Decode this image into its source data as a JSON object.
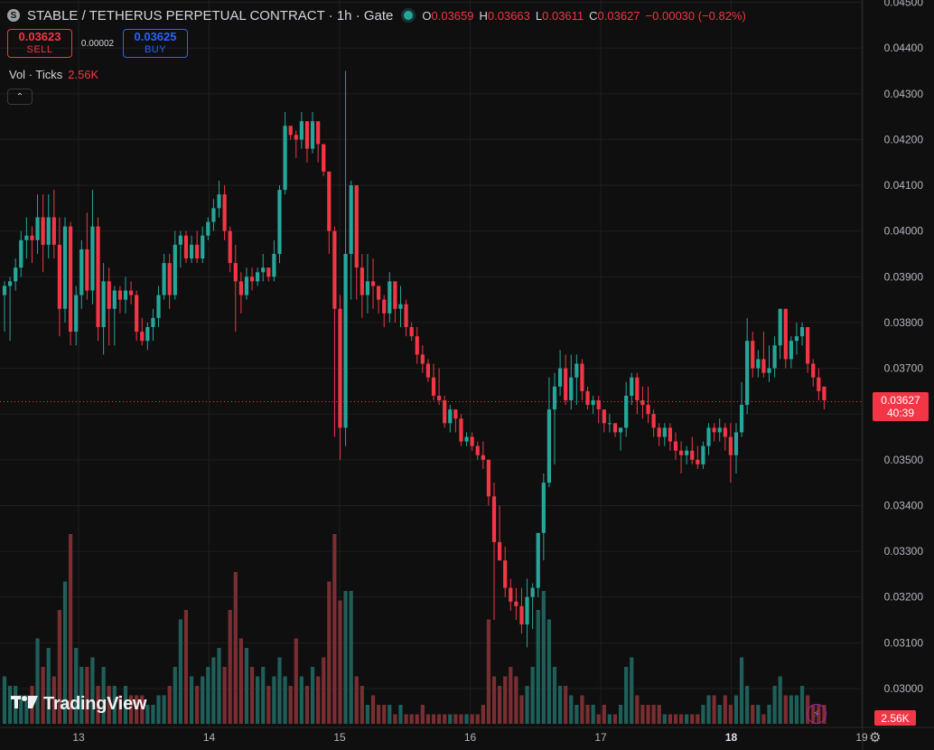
{
  "header": {
    "symbol_icon": "stable-coin-icon",
    "title": "STABLE / TETHERUS PERPETUAL CONTRACT · 1h · Gate",
    "live_dot": "market-open-icon",
    "ohlc": {
      "o_label": "O",
      "o": "0.03659",
      "h_label": "H",
      "h": "0.03663",
      "l_label": "L",
      "l": "0.03611",
      "c_label": "C",
      "c": "0.03627",
      "change": "−0.00030 (−0.82%)"
    }
  },
  "trade": {
    "sell_price": "0.03623",
    "sell_label": "SELL",
    "spread": "0.00002",
    "buy_price": "0.03625",
    "buy_label": "BUY"
  },
  "volume_legend": {
    "label": "Vol · Ticks",
    "value": "2.56K"
  },
  "collapse_icon": "chevron-up-icon",
  "logo": {
    "text": "TradingView",
    "icon": "tradingview-logo-icon"
  },
  "flash_icon": "lightning-icon",
  "settings_icon": "gear-icon",
  "colors": {
    "up": "#26a69a",
    "down": "#f23645",
    "volume_up": "#1f5f5a",
    "volume_down": "#7a2e32",
    "background": "#0f0f0f"
  },
  "chart_data": {
    "type": "candlestick",
    "price_axis_ticks": [
      "0.04500",
      "0.04400",
      "0.04300",
      "0.04200",
      "0.04100",
      "0.04000",
      "0.03900",
      "0.03800",
      "0.03700",
      "0.03600",
      "0.03500",
      "0.03400",
      "0.03300",
      "0.03200",
      "0.03100",
      "0.03000"
    ],
    "ylim": [
      0.02915,
      0.04505
    ],
    "time_axis_ticks": [
      {
        "label": "13",
        "day": 13
      },
      {
        "label": "14",
        "day": 14
      },
      {
        "label": "15",
        "day": 15
      },
      {
        "label": "16",
        "day": 16
      },
      {
        "label": "17",
        "day": 17
      },
      {
        "label": "18",
        "day": 18,
        "bold": true
      },
      {
        "label": "19",
        "day": 19
      }
    ],
    "last_price": {
      "value": "0.03627",
      "countdown": "40:39",
      "price": 0.03627
    },
    "volume_badge": "2.56K",
    "volume_max": 2.0,
    "candles": [
      [
        0.0386,
        0.0389,
        0.0378,
        0.0388,
        0.5
      ],
      [
        0.0388,
        0.039,
        0.0376,
        0.0389,
        0.4
      ],
      [
        0.0389,
        0.0394,
        0.0387,
        0.0392,
        0.4
      ],
      [
        0.0392,
        0.04,
        0.039,
        0.0398,
        0.3
      ],
      [
        0.0398,
        0.0403,
        0.0394,
        0.0399,
        0.3
      ],
      [
        0.0399,
        0.0401,
        0.0393,
        0.0398,
        0.4
      ],
      [
        0.0398,
        0.0408,
        0.0395,
        0.0403,
        0.9
      ],
      [
        0.0403,
        0.0408,
        0.0391,
        0.0397,
        0.6
      ],
      [
        0.0397,
        0.0408,
        0.0394,
        0.0403,
        0.8
      ],
      [
        0.0403,
        0.0409,
        0.0394,
        0.0397,
        0.5
      ],
      [
        0.0397,
        0.0403,
        0.0377,
        0.0383,
        1.2
      ],
      [
        0.0383,
        0.0403,
        0.038,
        0.0401,
        1.5
      ],
      [
        0.0401,
        0.0402,
        0.0375,
        0.0378,
        2.0
      ],
      [
        0.0378,
        0.0388,
        0.0375,
        0.0386,
        0.8
      ],
      [
        0.0386,
        0.0398,
        0.0383,
        0.0396,
        0.6
      ],
      [
        0.0396,
        0.0404,
        0.0385,
        0.0387,
        0.6
      ],
      [
        0.0387,
        0.0409,
        0.0384,
        0.0401,
        0.7
      ],
      [
        0.0401,
        0.0403,
        0.0376,
        0.0379,
        0.4
      ],
      [
        0.0379,
        0.0393,
        0.0373,
        0.0389,
        0.6
      ],
      [
        0.0389,
        0.0392,
        0.0375,
        0.0383,
        0.4
      ],
      [
        0.0383,
        0.0388,
        0.0375,
        0.0387,
        0.4
      ],
      [
        0.0387,
        0.0388,
        0.0382,
        0.0385,
        0.3
      ],
      [
        0.0385,
        0.039,
        0.0382,
        0.0387,
        0.4
      ],
      [
        0.0387,
        0.0389,
        0.0384,
        0.0386,
        0.3
      ],
      [
        0.0386,
        0.0387,
        0.0376,
        0.0378,
        0.3
      ],
      [
        0.0378,
        0.0381,
        0.0375,
        0.0376,
        0.3
      ],
      [
        0.0376,
        0.038,
        0.0374,
        0.0379,
        0.2
      ],
      [
        0.0379,
        0.0383,
        0.0376,
        0.0381,
        0.2
      ],
      [
        0.0381,
        0.0388,
        0.0379,
        0.0386,
        0.3
      ],
      [
        0.0386,
        0.0395,
        0.0385,
        0.0393,
        0.3
      ],
      [
        0.0393,
        0.0395,
        0.0383,
        0.0386,
        0.4
      ],
      [
        0.0386,
        0.04,
        0.0385,
        0.0397,
        0.6
      ],
      [
        0.0397,
        0.04,
        0.0392,
        0.0399,
        1.1
      ],
      [
        0.0399,
        0.04,
        0.0393,
        0.0394,
        1.2
      ],
      [
        0.0394,
        0.0399,
        0.0393,
        0.0397,
        0.5
      ],
      [
        0.0397,
        0.04,
        0.0393,
        0.0394,
        0.4
      ],
      [
        0.0394,
        0.0401,
        0.0393,
        0.0399,
        0.5
      ],
      [
        0.0399,
        0.0403,
        0.0398,
        0.0402,
        0.6
      ],
      [
        0.0402,
        0.0407,
        0.04,
        0.0405,
        0.7
      ],
      [
        0.0405,
        0.0411,
        0.0403,
        0.0408,
        0.8
      ],
      [
        0.0408,
        0.041,
        0.0398,
        0.04,
        0.6
      ],
      [
        0.04,
        0.0401,
        0.0391,
        0.0393,
        1.2
      ],
      [
        0.0393,
        0.0397,
        0.0378,
        0.0389,
        1.6
      ],
      [
        0.0389,
        0.0391,
        0.0382,
        0.0386,
        0.9
      ],
      [
        0.0386,
        0.0392,
        0.0385,
        0.039,
        0.8
      ],
      [
        0.039,
        0.0392,
        0.0387,
        0.0389,
        0.6
      ],
      [
        0.0389,
        0.0392,
        0.0388,
        0.0391,
        0.5
      ],
      [
        0.0391,
        0.0395,
        0.0389,
        0.0392,
        0.6
      ],
      [
        0.0392,
        0.0392,
        0.0389,
        0.039,
        0.4
      ],
      [
        0.039,
        0.0398,
        0.0389,
        0.0395,
        0.5
      ],
      [
        0.0395,
        0.041,
        0.0393,
        0.0409,
        0.7
      ],
      [
        0.0409,
        0.0426,
        0.0408,
        0.0423,
        0.5
      ],
      [
        0.0423,
        0.0423,
        0.042,
        0.0421,
        0.4
      ],
      [
        0.0421,
        0.0422,
        0.0416,
        0.042,
        0.9
      ],
      [
        0.042,
        0.0426,
        0.0418,
        0.0424,
        0.5
      ],
      [
        0.0424,
        0.0424,
        0.0415,
        0.0418,
        0.4
      ],
      [
        0.0418,
        0.0426,
        0.0417,
        0.0424,
        0.6
      ],
      [
        0.0424,
        0.0424,
        0.0415,
        0.0419,
        0.5
      ],
      [
        0.0419,
        0.0419,
        0.0412,
        0.0413,
        0.7
      ],
      [
        0.0413,
        0.0413,
        0.0395,
        0.04,
        1.5
      ],
      [
        0.04,
        0.0401,
        0.0355,
        0.0383,
        2.0
      ],
      [
        0.0383,
        0.0386,
        0.035,
        0.0357,
        1.3
      ],
      [
        0.0357,
        0.0435,
        0.0353,
        0.0395,
        1.4
      ],
      [
        0.0395,
        0.0411,
        0.0385,
        0.041,
        1.4
      ],
      [
        0.041,
        0.041,
        0.0385,
        0.0392,
        0.5
      ],
      [
        0.0392,
        0.0395,
        0.0381,
        0.0386,
        0.4
      ],
      [
        0.0386,
        0.0395,
        0.0382,
        0.0389,
        0.2
      ],
      [
        0.0389,
        0.0394,
        0.0383,
        0.0388,
        0.3
      ],
      [
        0.0388,
        0.0388,
        0.0382,
        0.0385,
        0.2
      ],
      [
        0.0385,
        0.0386,
        0.0379,
        0.0382,
        0.2
      ],
      [
        0.0382,
        0.0391,
        0.038,
        0.0389,
        0.2
      ],
      [
        0.0389,
        0.0389,
        0.038,
        0.0383,
        0.1
      ],
      [
        0.0383,
        0.0388,
        0.0379,
        0.0384,
        0.2
      ],
      [
        0.0384,
        0.0385,
        0.0377,
        0.0379,
        0.1
      ],
      [
        0.0379,
        0.038,
        0.0376,
        0.0377,
        0.1
      ],
      [
        0.0377,
        0.0379,
        0.0371,
        0.0373,
        0.1
      ],
      [
        0.0373,
        0.0375,
        0.0369,
        0.0371,
        0.2
      ],
      [
        0.0371,
        0.0372,
        0.0367,
        0.0368,
        0.1
      ],
      [
        0.0368,
        0.0371,
        0.0363,
        0.0364,
        0.1
      ],
      [
        0.0364,
        0.037,
        0.0362,
        0.0363,
        0.1
      ],
      [
        0.0363,
        0.0364,
        0.0357,
        0.0358,
        0.1
      ],
      [
        0.0358,
        0.0362,
        0.0356,
        0.0361,
        0.1
      ],
      [
        0.0361,
        0.0361,
        0.0356,
        0.0359,
        0.1
      ],
      [
        0.0359,
        0.036,
        0.0353,
        0.0354,
        0.1
      ],
      [
        0.0354,
        0.0356,
        0.0353,
        0.0355,
        0.1
      ],
      [
        0.0355,
        0.0356,
        0.0352,
        0.0353,
        0.1
      ],
      [
        0.0353,
        0.0354,
        0.035,
        0.0351,
        0.1
      ],
      [
        0.0351,
        0.0354,
        0.0348,
        0.035,
        0.2
      ],
      [
        0.035,
        0.035,
        0.034,
        0.0342,
        1.1
      ],
      [
        0.0342,
        0.0345,
        0.0315,
        0.0332,
        0.5
      ],
      [
        0.0332,
        0.034,
        0.0328,
        0.0328,
        0.4
      ],
      [
        0.0328,
        0.0331,
        0.032,
        0.0322,
        0.5
      ],
      [
        0.0322,
        0.0324,
        0.0317,
        0.0319,
        0.6
      ],
      [
        0.0319,
        0.0322,
        0.0315,
        0.0318,
        0.5
      ],
      [
        0.0318,
        0.0322,
        0.0312,
        0.0314,
        0.3
      ],
      [
        0.0314,
        0.0324,
        0.0309,
        0.032,
        0.4
      ],
      [
        0.032,
        0.0323,
        0.0313,
        0.0322,
        0.6
      ],
      [
        0.0322,
        0.0333,
        0.032,
        0.0334,
        1.2
      ],
      [
        0.0334,
        0.0347,
        0.0328,
        0.0345,
        1.4
      ],
      [
        0.0345,
        0.0368,
        0.0344,
        0.0361,
        1.1
      ],
      [
        0.0361,
        0.0369,
        0.0349,
        0.0366,
        0.6
      ],
      [
        0.0366,
        0.0374,
        0.0364,
        0.037,
        0.4
      ],
      [
        0.037,
        0.0373,
        0.0362,
        0.0363,
        0.4
      ],
      [
        0.0363,
        0.0373,
        0.0361,
        0.0368,
        0.3
      ],
      [
        0.0368,
        0.0373,
        0.0362,
        0.0371,
        0.2
      ],
      [
        0.0371,
        0.0372,
        0.0363,
        0.0365,
        0.3
      ],
      [
        0.0365,
        0.0366,
        0.0361,
        0.0362,
        0.2
      ],
      [
        0.0362,
        0.0364,
        0.036,
        0.0363,
        0.2
      ],
      [
        0.0363,
        0.0364,
        0.0358,
        0.0361,
        0.1
      ],
      [
        0.0361,
        0.0361,
        0.0356,
        0.0358,
        0.2
      ],
      [
        0.0358,
        0.036,
        0.0356,
        0.0358,
        0.1
      ],
      [
        0.0358,
        0.0358,
        0.0355,
        0.0356,
        0.1
      ],
      [
        0.0356,
        0.0357,
        0.0352,
        0.0357,
        0.2
      ],
      [
        0.0357,
        0.0367,
        0.0355,
        0.0364,
        0.6
      ],
      [
        0.0364,
        0.0369,
        0.0362,
        0.0368,
        0.7
      ],
      [
        0.0368,
        0.0369,
        0.036,
        0.0363,
        0.3
      ],
      [
        0.0363,
        0.0366,
        0.0359,
        0.0362,
        0.2
      ],
      [
        0.0362,
        0.0366,
        0.0358,
        0.036,
        0.2
      ],
      [
        0.036,
        0.0361,
        0.0355,
        0.0357,
        0.2
      ],
      [
        0.0357,
        0.0358,
        0.0353,
        0.0355,
        0.2
      ],
      [
        0.0355,
        0.0358,
        0.0353,
        0.0357,
        0.1
      ],
      [
        0.0357,
        0.0358,
        0.0352,
        0.0354,
        0.1
      ],
      [
        0.0354,
        0.0356,
        0.035,
        0.0352,
        0.1
      ],
      [
        0.0352,
        0.0354,
        0.0347,
        0.0351,
        0.1
      ],
      [
        0.0351,
        0.0353,
        0.0349,
        0.0352,
        0.1
      ],
      [
        0.0352,
        0.0355,
        0.0349,
        0.035,
        0.1
      ],
      [
        0.035,
        0.0353,
        0.0348,
        0.0349,
        0.1
      ],
      [
        0.0349,
        0.0354,
        0.0348,
        0.0353,
        0.2
      ],
      [
        0.0353,
        0.0358,
        0.0351,
        0.0357,
        0.3
      ],
      [
        0.0357,
        0.0358,
        0.0354,
        0.0356,
        0.3
      ],
      [
        0.0356,
        0.0359,
        0.0354,
        0.0357,
        0.2
      ],
      [
        0.0357,
        0.0358,
        0.0352,
        0.0355,
        0.3
      ],
      [
        0.0355,
        0.0358,
        0.0345,
        0.0351,
        0.2
      ],
      [
        0.0351,
        0.0358,
        0.0347,
        0.0356,
        0.3
      ],
      [
        0.0356,
        0.0367,
        0.0355,
        0.0362,
        0.7
      ],
      [
        0.0362,
        0.0381,
        0.036,
        0.0376,
        0.4
      ],
      [
        0.0376,
        0.0378,
        0.0368,
        0.037,
        0.2
      ],
      [
        0.037,
        0.0374,
        0.0368,
        0.0372,
        0.2
      ],
      [
        0.0372,
        0.0378,
        0.0368,
        0.0369,
        0.1
      ],
      [
        0.0369,
        0.0375,
        0.0367,
        0.037,
        0.2
      ],
      [
        0.037,
        0.0377,
        0.0368,
        0.0375,
        0.4
      ],
      [
        0.0375,
        0.0383,
        0.0372,
        0.0383,
        0.5
      ],
      [
        0.0383,
        0.0383,
        0.037,
        0.0372,
        0.3
      ],
      [
        0.0372,
        0.0377,
        0.037,
        0.0376,
        0.3
      ],
      [
        0.0376,
        0.038,
        0.0373,
        0.0377,
        0.3
      ],
      [
        0.0377,
        0.038,
        0.0375,
        0.0379,
        0.4
      ],
      [
        0.0379,
        0.0379,
        0.0369,
        0.0371,
        0.3
      ],
      [
        0.0371,
        0.0372,
        0.0366,
        0.0368,
        0.2
      ],
      [
        0.0368,
        0.037,
        0.0363,
        0.0365,
        0.2
      ],
      [
        0.0366,
        0.0366,
        0.0361,
        0.0363,
        0.2
      ]
    ]
  }
}
